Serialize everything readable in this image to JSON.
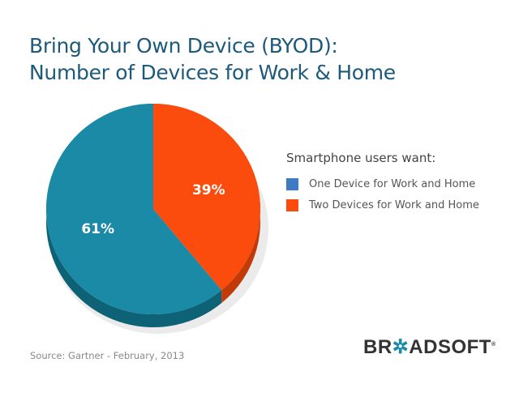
{
  "title_lines": [
    "Bring Your Own Device (BYOD):",
    "Number of Devices for Work & Home"
  ],
  "chart_data": {
    "type": "pie",
    "title": "Bring Your Own Device (BYOD): Number of Devices for Work & Home",
    "legend_title": "Smartphone users want:",
    "legend_position": "right",
    "slices": [
      {
        "label": "One Device for Work and Home",
        "value": 61,
        "display": "61%",
        "color": "#1b8aa6",
        "legend_color": "#3f7bc4",
        "shade": "#0d6276"
      },
      {
        "label": "Two Devices for Work and Home",
        "value": 39,
        "display": "39%",
        "color": "#fb4c0e",
        "legend_color": "#fb4c0e",
        "shade": "#c23a08"
      }
    ]
  },
  "source": "Source: Gartner - February, 2013",
  "logo": "BROADSOFT"
}
